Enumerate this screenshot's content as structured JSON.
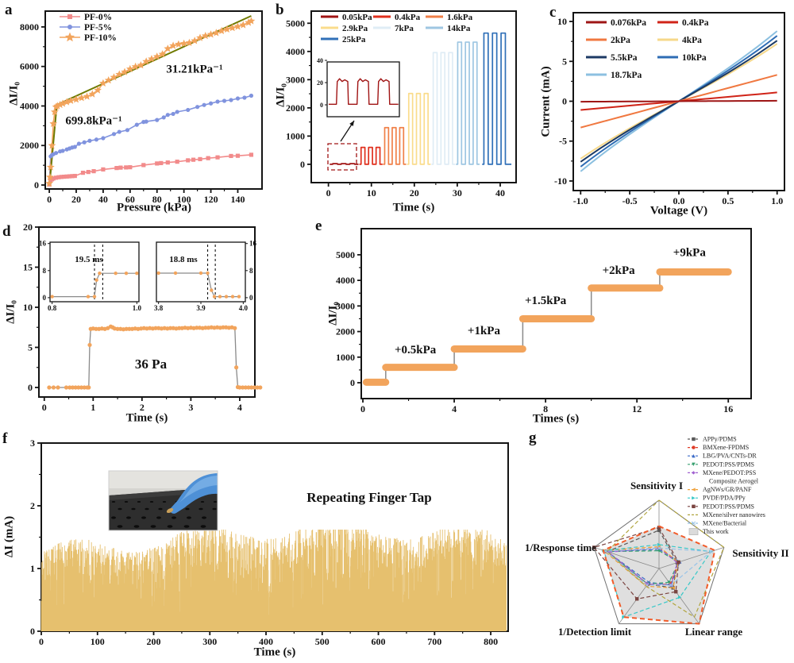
{
  "panels": {
    "a": {
      "letter": "a",
      "xlabel": "Pressure (kPa)",
      "ylabel": "ΔI/I₀",
      "ann_slope1": "31.21kPa⁻¹",
      "ann_slope2": "699.8kPa⁻¹"
    },
    "b": {
      "letter": "b",
      "xlabel": "Time (s)",
      "ylabel": "ΔI/I₀"
    },
    "c": {
      "letter": "c",
      "xlabel": "Voltage (V)",
      "ylabel": "Current (mA)"
    },
    "d": {
      "letter": "d",
      "xlabel": "Time (s)",
      "ylabel": "ΔI/I₀",
      "annotation": "36 Pa",
      "inset_rise": "19.5 ms",
      "inset_fall": "18.8 ms"
    },
    "e": {
      "letter": "e",
      "xlabel": "Times (s)",
      "ylabel": "ΔI/I₀"
    },
    "f": {
      "letter": "f",
      "xlabel": "Time (s)",
      "ylabel": "ΔI (mA)",
      "annotation": "Repeating Finger Tap"
    },
    "g": {
      "letter": "g",
      "axes": [
        "Sensitivity I",
        "Sensitivity II",
        "Linear range",
        "1/Detection limit",
        "1/Response time"
      ]
    }
  },
  "chart_data": [
    {
      "panel": "a",
      "type": "line",
      "title": "Sensitivity curves",
      "xlabel": "Pressure (kPa)",
      "ylabel": "ΔI/I₀",
      "xlim": [
        -3,
        158
      ],
      "ylim": [
        -200,
        8800
      ],
      "xticks": [
        0,
        20,
        40,
        60,
        80,
        100,
        120,
        140
      ],
      "yticks": [
        0,
        2000,
        4000,
        6000,
        8000
      ],
      "fit_color": "#6F7A00",
      "fit_lines": [
        {
          "x1": 0.2,
          "y1": 50,
          "x2": 5.6,
          "y2": 4060
        },
        {
          "x1": 5.6,
          "y1": 4060,
          "x2": 150,
          "y2": 8560
        }
      ],
      "annotations": [
        {
          "text": "31.21kPa⁻¹"
        },
        {
          "text": "699.8kPa⁻¹"
        }
      ],
      "series": [
        {
          "name": "PF-0%",
          "color": "#F28B8B",
          "marker": "sq",
          "x": [
            0,
            1,
            2,
            3,
            5,
            7,
            9,
            11,
            13,
            15,
            17,
            19,
            25,
            29,
            33,
            40,
            50,
            53,
            57,
            60,
            70,
            80,
            83,
            88,
            95,
            103,
            107,
            112,
            118,
            125,
            135,
            140,
            150
          ],
          "y": [
            30,
            240,
            290,
            330,
            370,
            395,
            410,
            420,
            430,
            440,
            450,
            460,
            620,
            660,
            700,
            790,
            860,
            880,
            890,
            900,
            1010,
            1090,
            1110,
            1140,
            1180,
            1250,
            1280,
            1310,
            1360,
            1400,
            1470,
            1480,
            1530
          ]
        },
        {
          "name": "PF-5%",
          "color": "#8093DE",
          "marker": "ci",
          "x": [
            0,
            1,
            2,
            3,
            5,
            8,
            10,
            13,
            15,
            17,
            19,
            22,
            26,
            30,
            35,
            40,
            48,
            52,
            58,
            65,
            70,
            72,
            80,
            85,
            88,
            92,
            95,
            103,
            110,
            115,
            120,
            125,
            130,
            135,
            140,
            145,
            150
          ],
          "y": [
            80,
            1450,
            1520,
            1560,
            1620,
            1700,
            1730,
            1800,
            1850,
            1900,
            1930,
            2090,
            2160,
            2240,
            2300,
            2370,
            2580,
            2690,
            2780,
            3050,
            3190,
            3210,
            3290,
            3420,
            3550,
            3600,
            3700,
            3800,
            3950,
            4050,
            4130,
            4220,
            4260,
            4300,
            4380,
            4420,
            4520
          ]
        },
        {
          "name": "PF-10%",
          "color": "#F2A45C",
          "marker": "st",
          "x": [
            0,
            0.5,
            1,
            2,
            3,
            4,
            5,
            6,
            8,
            10,
            13,
            16,
            20,
            24,
            28,
            32,
            36,
            40,
            44,
            48,
            52,
            56,
            60,
            64,
            68,
            72,
            76,
            80,
            84,
            88,
            92,
            96,
            100,
            104,
            108,
            112,
            116,
            120,
            124,
            128,
            132,
            136,
            140,
            144,
            148,
            150
          ],
          "y": [
            80,
            400,
            900,
            2000,
            3100,
            3700,
            3950,
            4000,
            4060,
            4120,
            4200,
            4270,
            4330,
            4410,
            4480,
            4600,
            4800,
            5150,
            5300,
            5450,
            5600,
            5720,
            5870,
            5990,
            6060,
            6250,
            6380,
            6500,
            6620,
            6900,
            7050,
            7120,
            7160,
            7200,
            7300,
            7450,
            7550,
            7620,
            7700,
            7800,
            7880,
            7950,
            8020,
            8100,
            8220,
            8300
          ]
        }
      ]
    },
    {
      "panel": "b",
      "type": "pulse",
      "title": "Step pressure pulses",
      "xlabel": "Time (s)",
      "ylabel": "ΔI/I₀",
      "xlim": [
        -4,
        43.7
      ],
      "ylim": [
        -650,
        5430
      ],
      "xticks": [
        0,
        10,
        20,
        30,
        40
      ],
      "yticks": [
        0,
        1000,
        2000,
        3000,
        4000,
        5000
      ],
      "groups": [
        {
          "label": "0.05kPa",
          "color": "#A01414",
          "amp": 22,
          "t0": 1.0,
          "width": 1.1,
          "gap": 0.9,
          "n": 3,
          "start": 0.3,
          "end": 7.0
        },
        {
          "label": "0.4kPa",
          "color": "#E0301E",
          "amp": 600,
          "t0": 7.6,
          "width": 0.9,
          "gap": 0.85,
          "n": 3,
          "start": 7.2,
          "end": 12.6
        },
        {
          "label": "1.6kPa",
          "color": "#F08048",
          "amp": 1300,
          "t0": 13.1,
          "width": 0.9,
          "gap": 0.85,
          "n": 3,
          "start": 12.7,
          "end": 18.1
        },
        {
          "label": "2.9kPa",
          "color": "#FADC8C",
          "amp": 2510,
          "t0": 18.7,
          "width": 0.9,
          "gap": 0.9,
          "n": 3,
          "start": 18.3,
          "end": 23.8
        },
        {
          "label": "7kPa",
          "color": "#DFECF5",
          "amp": 3960,
          "t0": 24.4,
          "width": 0.9,
          "gap": 0.9,
          "n": 3,
          "start": 24.0,
          "end": 29.5
        },
        {
          "label": "14kPa",
          "color": "#9EC6E2",
          "amp": 4330,
          "t0": 30.1,
          "width": 0.9,
          "gap": 0.9,
          "n": 3,
          "start": 29.7,
          "end": 35.2
        },
        {
          "label": "25kPa",
          "color": "#3070B8",
          "amp": 4650,
          "t0": 36.2,
          "width": 1.0,
          "gap": 1.0,
          "n": 3,
          "start": 35.8,
          "end": 42.6
        }
      ],
      "inset": {
        "yticks": [
          0,
          20,
          40
        ],
        "pulse_amp": 22,
        "pulses": [
          [
            0.9,
            2.0
          ],
          [
            2.9,
            4.0
          ],
          [
            4.9,
            6.0
          ]
        ],
        "xlim": [
          0,
          7
        ]
      }
    },
    {
      "panel": "c",
      "type": "line",
      "title": "I-V curves under pressure",
      "xlabel": "Voltage (V)",
      "ylabel": "Current (mA)",
      "xlim": [
        -1.075,
        1.075
      ],
      "ylim": [
        -11.2,
        11.1
      ],
      "xticks": [
        [
          -1,
          "-1.0"
        ],
        [
          -0.5,
          "-0.5"
        ],
        [
          0,
          "0.0"
        ],
        [
          0.5,
          "0.5"
        ],
        [
          1,
          "1.0"
        ]
      ],
      "yticks": [
        -10,
        -5,
        0,
        5,
        10
      ],
      "series": [
        {
          "name": "0.076kPa",
          "color": "#9E1515",
          "slope": 0.06
        },
        {
          "name": "0.4kPa",
          "color": "#D02418",
          "slope": 1.1
        },
        {
          "name": "2kPa",
          "color": "#F07840",
          "slope": 3.3
        },
        {
          "name": "4kPa",
          "color": "#F6D88A",
          "slope": 7.2
        },
        {
          "name": "5.5kPa",
          "color": "#1C3A64",
          "slope": 7.6
        },
        {
          "name": "10kPa",
          "color": "#2E6CB4",
          "slope": 8.2
        },
        {
          "name": "18.7kPa",
          "color": "#8CC0E0",
          "slope": 8.8
        }
      ]
    },
    {
      "panel": "d",
      "type": "line",
      "title": "Response to 36 Pa step",
      "xlabel": "Time (s)",
      "ylabel": "ΔI/I₀",
      "annotation": "36 Pa",
      "xlim": [
        -0.11,
        4.31
      ],
      "ylim": [
        -1.19,
        20
      ],
      "xticks": [
        0,
        1,
        2,
        3,
        4
      ],
      "yticks": [
        0,
        5,
        10,
        15,
        20
      ],
      "point_color": "#F2A45C",
      "line_color": "#8a8a8a",
      "t": [
        0.1,
        0.19,
        0.28,
        0.45,
        0.52,
        0.58,
        0.64,
        0.7,
        0.76,
        0.82,
        0.88,
        0.91,
        0.93,
        0.95,
        1.0,
        1.06,
        1.12,
        1.18,
        1.24,
        1.3,
        1.36,
        1.4,
        1.44,
        1.5,
        1.56,
        1.62,
        1.68,
        1.74,
        1.8,
        1.86,
        1.92,
        1.98,
        2.04,
        2.1,
        2.16,
        2.22,
        2.28,
        2.34,
        2.4,
        2.46,
        2.52,
        2.58,
        2.64,
        2.7,
        2.76,
        2.82,
        2.88,
        2.94,
        3.0,
        3.06,
        3.12,
        3.18,
        3.24,
        3.3,
        3.36,
        3.42,
        3.48,
        3.54,
        3.6,
        3.66,
        3.72,
        3.78,
        3.84,
        3.9,
        3.93,
        3.96,
        4.0,
        4.06,
        4.12,
        4.18,
        4.24,
        4.3,
        4.36,
        4.42
      ],
      "v": [
        0,
        0,
        0,
        0,
        0,
        0,
        0,
        0,
        0,
        0,
        0,
        0,
        5.3,
        7.3,
        7.35,
        7.3,
        7.3,
        7.35,
        7.3,
        7.4,
        7.6,
        7.5,
        7.35,
        7.3,
        7.3,
        7.25,
        7.3,
        7.3,
        7.3,
        7.35,
        7.3,
        7.35,
        7.4,
        7.35,
        7.4,
        7.35,
        7.4,
        7.4,
        7.35,
        7.4,
        7.35,
        7.4,
        7.4,
        7.35,
        7.4,
        7.4,
        7.45,
        7.4,
        7.45,
        7.4,
        7.45,
        7.45,
        7.4,
        7.45,
        7.45,
        7.5,
        7.45,
        7.5,
        7.45,
        7.5,
        7.5,
        7.45,
        7.5,
        7.4,
        2.5,
        0.05,
        0,
        0,
        0,
        0,
        0,
        0,
        0,
        0
      ],
      "inset_rise": {
        "label": "19.5 ms",
        "xticks": [
          [
            0.8,
            "0.8"
          ],
          [
            1.0,
            "1.0"
          ]
        ],
        "yticks": [
          0,
          8,
          16
        ],
        "dash_x": [
          0.9,
          0.9195
        ],
        "t": [
          0.8,
          0.885,
          0.9,
          0.905,
          0.912,
          0.95,
          0.975,
          1.0
        ],
        "v": [
          0.3,
          0.3,
          0.3,
          5.2,
          7.2,
          7.2,
          7.2,
          7.2
        ]
      },
      "inset_fall": {
        "label": "18.8 ms",
        "xticks": [
          [
            3.8,
            "3.8"
          ],
          [
            3.9,
            "3.9"
          ],
          [
            4.0,
            "4.0"
          ]
        ],
        "yticks": [
          0,
          8,
          16
        ],
        "dash_x": [
          3.916,
          3.934
        ],
        "t": [
          3.8,
          3.84,
          3.9,
          3.916,
          3.925,
          3.932,
          3.945,
          3.96,
          3.975,
          3.99
        ],
        "v": [
          7.25,
          7.25,
          7.25,
          7.25,
          2.2,
          0.3,
          0.3,
          0.3,
          0.3,
          0.3
        ]
      }
    },
    {
      "panel": "e",
      "type": "steps",
      "title": "Stepwise loading",
      "xlabel": "Times (s)",
      "ylabel": "ΔI/I₀",
      "xlim": [
        -0.07,
        17.0
      ],
      "ylim": [
        -620,
        6020
      ],
      "xticks": [
        0,
        4,
        8,
        12,
        16
      ],
      "yticks": [
        0,
        1000,
        2000,
        3000,
        4000,
        5000
      ],
      "color": "#F2A45C",
      "riser_color": "#8a8a8a",
      "steps": [
        {
          "t0": 0.15,
          "t1": 1,
          "value": 20
        },
        {
          "t0": 1,
          "t1": 4,
          "value": 600
        },
        {
          "t0": 4,
          "t1": 7,
          "value": 1320
        },
        {
          "t0": 7,
          "t1": 10,
          "value": 2500
        },
        {
          "t0": 10,
          "t1": 13,
          "value": 3700
        },
        {
          "t0": 13,
          "t1": 16,
          "value": 4330
        }
      ],
      "step_labels": [
        {
          "text": "+0.5kPa",
          "x": 2.3,
          "y": 1150
        },
        {
          "text": "+1kPa",
          "x": 5.3,
          "y": 1900
        },
        {
          "text": "+1.5kPa",
          "x": 8.0,
          "y": 3080
        },
        {
          "text": "+2kPa",
          "x": 11.2,
          "y": 4250
        },
        {
          "text": "+9kPa",
          "x": 14.3,
          "y": 4950
        }
      ]
    },
    {
      "panel": "f",
      "type": "area-spikes",
      "title": "Durability under finger tapping",
      "xlabel": "Time (s)",
      "ylabel": "ΔI (mA)",
      "annotation": "Repeating Finger Tap",
      "xlim": [
        0,
        831
      ],
      "ylim": [
        0,
        3
      ],
      "xticks": [
        0,
        100,
        200,
        300,
        400,
        500,
        600,
        700,
        800
      ],
      "yticks": [
        0,
        1,
        2,
        3
      ],
      "color": "#E6C06E",
      "signal": {
        "n": 1400,
        "x_max": 828,
        "amp_min": 0.1,
        "amp_max": 1.62,
        "seed": 7
      }
    },
    {
      "panel": "g",
      "type": "radar",
      "title": "Performance comparison",
      "axes": [
        "Sensitivity I",
        "Sensitivity II",
        "Linear range",
        "1/Detection limit",
        "1/Response time"
      ],
      "max": 1.0,
      "series": [
        {
          "name": "APPy/PDMS",
          "color": "#595959",
          "marker": "sq",
          "values": [
            0.56,
            0.28,
            0.35,
            0.28,
            0.8
          ]
        },
        {
          "name": "BMXene-FPDMS",
          "color": "#E03C28",
          "marker": "ci",
          "values": [
            0.3,
            0.3,
            0.28,
            0.3,
            0.82
          ]
        },
        {
          "name": "LBG/PVA/CNTs-DR",
          "color": "#3C6CC8",
          "marker": "tu",
          "values": [
            0.28,
            0.32,
            0.3,
            0.25,
            0.8
          ]
        },
        {
          "name": "PEDOT:PSS/PDMS",
          "color": "#38A070",
          "marker": "td",
          "values": [
            0.26,
            0.3,
            0.25,
            0.28,
            0.8
          ]
        },
        {
          "name": "MXene/PEDOT:PSS",
          "name2": "Composite Aerogel",
          "color": "#A060D0",
          "marker": "di",
          "values": [
            0.3,
            0.28,
            0.3,
            0.28,
            0.78
          ]
        },
        {
          "name": "AgNWs/GR/PANF",
          "color": "#F0A038",
          "marker": "tl",
          "values": [
            0.32,
            0.3,
            0.35,
            0.32,
            0.85
          ]
        },
        {
          "name": "PVDF/PDA/PPy",
          "color": "#38C8C8",
          "marker": "tr",
          "values": [
            0.35,
            0.8,
            0.52,
            0.88,
            0.85
          ]
        },
        {
          "name": "PEDOT:PSS/PDMS",
          "color": "#7A4440",
          "marker": "sq",
          "values": [
            0.6,
            0.3,
            0.42,
            0.55,
            1.0
          ]
        },
        {
          "name": "MXene/silver nanowires",
          "color": "#B0A43C",
          "marker": "none",
          "values": [
            1.0,
            1.0,
            0.88,
            0.32,
            0.8
          ]
        },
        {
          "name": "MXene/Bacterial",
          "color": "#98C4E8",
          "marker": "x",
          "values": [
            0.3,
            0.8,
            0.3,
            0.3,
            0.82
          ]
        },
        {
          "name": "This work",
          "color": "#F25C2A",
          "fill": "#DBDBDB",
          "marker": "fill",
          "values": [
            0.62,
            0.86,
            1.0,
            0.88,
            0.86
          ]
        }
      ]
    }
  ]
}
